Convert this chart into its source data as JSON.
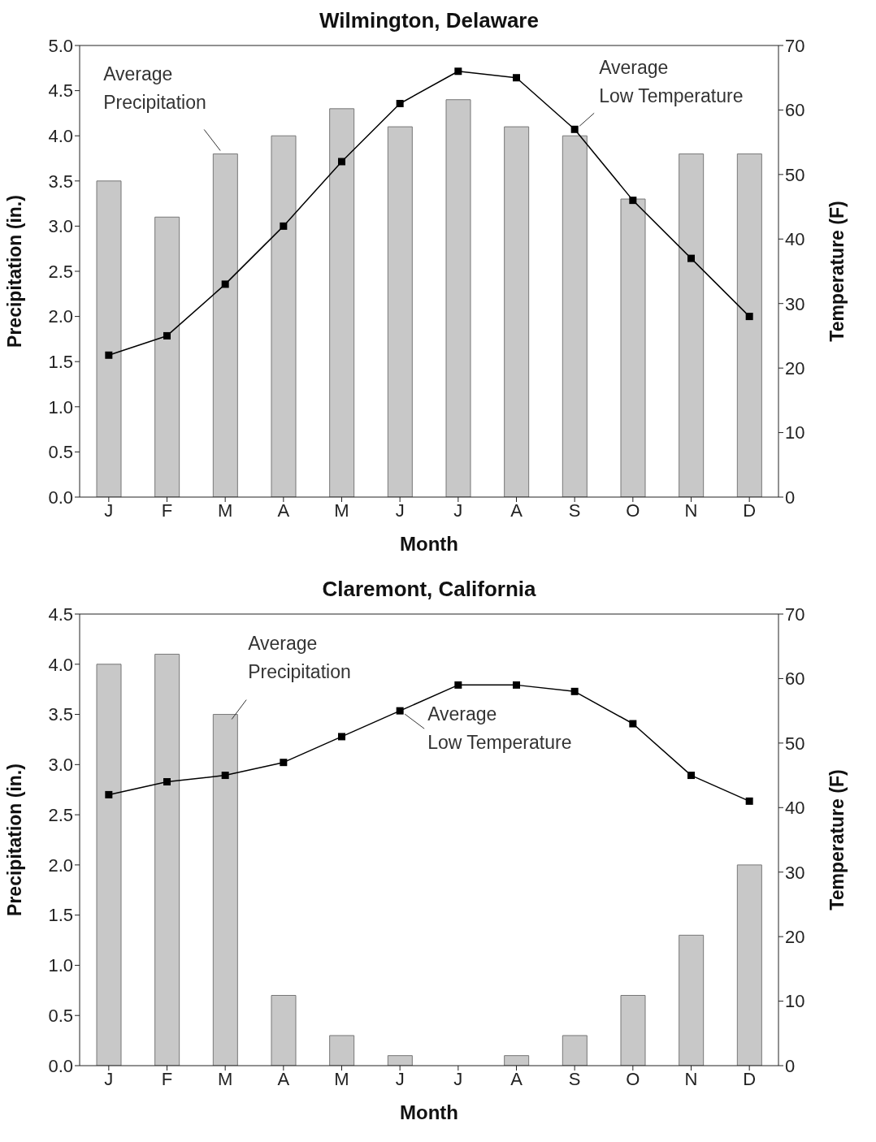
{
  "chart_data": [
    {
      "type": "bar",
      "title": "Wilmington, Delaware",
      "xlabel": "Month",
      "ylabel": "Precipitation (in.)",
      "y2label": "Temperature (F)",
      "categories": [
        "J",
        "F",
        "M",
        "A",
        "M",
        "J",
        "J",
        "A",
        "S",
        "O",
        "N",
        "D"
      ],
      "ylim": [
        0,
        5
      ],
      "yticks": [
        {
          "value": 0,
          "label": "0.0"
        },
        {
          "value": 0.5,
          "label": "0.5"
        },
        {
          "value": 1,
          "label": "1.0"
        },
        {
          "value": 1.5,
          "label": "1.5"
        },
        {
          "value": 2,
          "label": "2.0"
        },
        {
          "value": 2.5,
          "label": "2.5"
        },
        {
          "value": 3,
          "label": "3.0"
        },
        {
          "value": 3.5,
          "label": "3.5"
        },
        {
          "value": 4,
          "label": "4.0"
        },
        {
          "value": 4.5,
          "label": "4.5"
        },
        {
          "value": 5,
          "label": "5.0"
        }
      ],
      "y2lim": [
        0,
        70
      ],
      "y2ticks": [
        0,
        10,
        20,
        30,
        40,
        50,
        60,
        70
      ],
      "marker": "square",
      "series": [
        {
          "name": "Average Precipitation",
          "color": "#c8c8c8",
          "values": [
            3.5,
            3.1,
            3.8,
            4.0,
            4.3,
            4.1,
            4.4,
            4.1,
            4.0,
            3.3,
            3.8,
            3.8
          ]
        },
        {
          "name": "Average Low Temperature",
          "type": "line",
          "axis": "y2",
          "color": "#000000",
          "values": [
            22,
            25,
            33,
            42,
            52,
            61,
            66,
            65,
            57,
            46,
            37,
            28
          ]
        }
      ]
    },
    {
      "type": "bar",
      "title": "Claremont, California",
      "xlabel": "Month",
      "ylabel": "Precipitation (in.)",
      "y2label": "Temperature (F)",
      "categories": [
        "J",
        "F",
        "M",
        "A",
        "M",
        "J",
        "J",
        "A",
        "S",
        "O",
        "N",
        "D"
      ],
      "ylim": [
        0,
        4.5
      ],
      "yticks": [
        {
          "value": 0,
          "label": "0.0"
        },
        {
          "value": 0.5,
          "label": "0.5"
        },
        {
          "value": 1,
          "label": "1.0"
        },
        {
          "value": 1.5,
          "label": "1.5"
        },
        {
          "value": 2,
          "label": "2.0"
        },
        {
          "value": 2.5,
          "label": "2.5"
        },
        {
          "value": 3,
          "label": "3.0"
        },
        {
          "value": 3.5,
          "label": "3.5"
        },
        {
          "value": 4,
          "label": "4.0"
        },
        {
          "value": 4.5,
          "label": "4.5"
        }
      ],
      "y2lim": [
        0,
        70
      ],
      "y2ticks": [
        0,
        10,
        20,
        30,
        40,
        50,
        60,
        70
      ],
      "marker": "square",
      "series": [
        {
          "name": "Average Precipitation",
          "color": "#c8c8c8",
          "values": [
            4.0,
            4.1,
            3.5,
            0.7,
            0.3,
            0.1,
            0,
            0.1,
            0.3,
            0.7,
            1.3,
            2.0
          ]
        },
        {
          "name": "Average Low Temperature",
          "type": "line",
          "axis": "y2",
          "color": "#000000",
          "values": [
            42,
            44,
            45,
            47,
            51,
            55,
            59,
            59,
            58,
            53,
            45,
            41
          ]
        }
      ]
    }
  ]
}
